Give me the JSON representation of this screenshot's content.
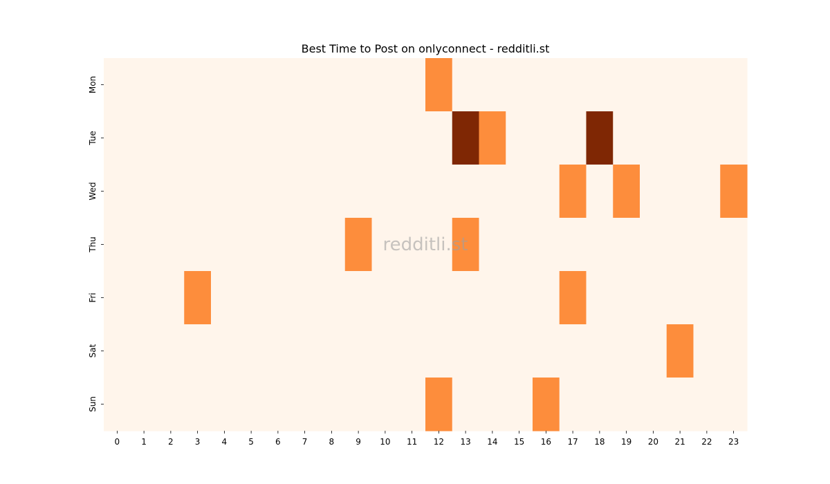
{
  "chart_data": {
    "type": "heatmap",
    "title": "Best Time to Post on onlyconnect - redditli.st",
    "watermark": "redditli.st",
    "x_categories": [
      "0",
      "1",
      "2",
      "3",
      "4",
      "5",
      "6",
      "7",
      "8",
      "9",
      "10",
      "11",
      "12",
      "13",
      "14",
      "15",
      "16",
      "17",
      "18",
      "19",
      "20",
      "21",
      "22",
      "23"
    ],
    "y_categories": [
      "Mon",
      "Tue",
      "Wed",
      "Thu",
      "Fri",
      "Sat",
      "Sun"
    ],
    "xlabel": "",
    "ylabel": "",
    "colormap": "Oranges",
    "colors": {
      "low": "#fff5eb",
      "mid": "#fd8d3c",
      "high": "#7f2704"
    },
    "values": [
      [
        0,
        0,
        0,
        0,
        0,
        0,
        0,
        0,
        0,
        0,
        0,
        0,
        1,
        0,
        0,
        0,
        0,
        0,
        0,
        0,
        0,
        0,
        0,
        0
      ],
      [
        0,
        0,
        0,
        0,
        0,
        0,
        0,
        0,
        0,
        0,
        0,
        0,
        0,
        2,
        1,
        0,
        0,
        0,
        2,
        0,
        0,
        0,
        0,
        0
      ],
      [
        0,
        0,
        0,
        0,
        0,
        0,
        0,
        0,
        0,
        0,
        0,
        0,
        0,
        0,
        0,
        0,
        0,
        1,
        0,
        1,
        0,
        0,
        0,
        1
      ],
      [
        0,
        0,
        0,
        0,
        0,
        0,
        0,
        0,
        0,
        1,
        0,
        0,
        0,
        1,
        0,
        0,
        0,
        0,
        0,
        0,
        0,
        0,
        0,
        0
      ],
      [
        0,
        0,
        0,
        1,
        0,
        0,
        0,
        0,
        0,
        0,
        0,
        0,
        0,
        0,
        0,
        0,
        0,
        1,
        0,
        0,
        0,
        0,
        0,
        0
      ],
      [
        0,
        0,
        0,
        0,
        0,
        0,
        0,
        0,
        0,
        0,
        0,
        0,
        0,
        0,
        0,
        0,
        0,
        0,
        0,
        0,
        0,
        1,
        0,
        0
      ],
      [
        0,
        0,
        0,
        0,
        0,
        0,
        0,
        0,
        0,
        0,
        0,
        0,
        1,
        0,
        0,
        0,
        1,
        0,
        0,
        0,
        0,
        0,
        0,
        0
      ]
    ],
    "value_range": [
      0,
      2
    ],
    "grid": false,
    "legend": "none"
  }
}
